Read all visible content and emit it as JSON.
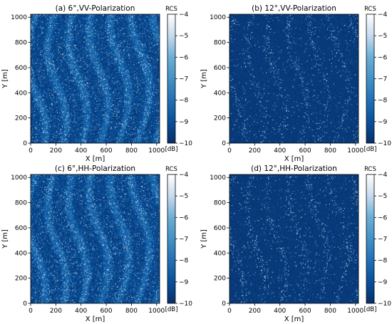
{
  "colorbar": {
    "label": "RCS",
    "unit": "[dB]",
    "min": -10,
    "max": -4,
    "ticks": [
      -4,
      -5,
      -6,
      -7,
      -8,
      -9,
      -10
    ],
    "colors": [
      "#08306b",
      "#08519c",
      "#2171b5",
      "#4292c6",
      "#6baed6",
      "#c6dbef",
      "#ffffff"
    ]
  },
  "chart_data": [
    {
      "type": "heatmap",
      "title": "(a) 6°,VV-Polarization",
      "xlabel": "X [m]",
      "ylabel": "Y [m]",
      "xlim": [
        0,
        1024
      ],
      "ylim": [
        0,
        1024
      ],
      "xticks": [
        0,
        200,
        400,
        600,
        800,
        1000
      ],
      "yticks": [
        0,
        200,
        400,
        600,
        800,
        1000
      ],
      "value_unit": "dB",
      "value_range": [
        -10,
        -4
      ],
      "mean_rcs_db": -9.0,
      "incidence_angle_deg": 6,
      "polarization": "VV"
    },
    {
      "type": "heatmap",
      "title": "(b) 12°,VV-Polarization",
      "xlabel": "X [m]",
      "ylabel": "Y [m]",
      "xlim": [
        0,
        1024
      ],
      "ylim": [
        0,
        1024
      ],
      "xticks": [
        0,
        200,
        400,
        600,
        800,
        1000
      ],
      "yticks": [
        0,
        200,
        400,
        600,
        800,
        1000
      ],
      "value_unit": "dB",
      "value_range": [
        -10,
        -4
      ],
      "mean_rcs_db": -9.7,
      "incidence_angle_deg": 12,
      "polarization": "VV"
    },
    {
      "type": "heatmap",
      "title": "(c) 6°,HH-Polarization",
      "xlabel": "X [m]",
      "ylabel": "Y [m]",
      "xlim": [
        0,
        1024
      ],
      "ylim": [
        0,
        1024
      ],
      "xticks": [
        0,
        200,
        400,
        600,
        800,
        1000
      ],
      "yticks": [
        0,
        200,
        400,
        600,
        800,
        1000
      ],
      "value_unit": "dB",
      "value_range": [
        -10,
        -4
      ],
      "mean_rcs_db": -9.0,
      "incidence_angle_deg": 6,
      "polarization": "HH"
    },
    {
      "type": "heatmap",
      "title": "(d) 12°,HH-Polarization",
      "xlabel": "X [m]",
      "ylabel": "Y [m]",
      "xlim": [
        0,
        1024
      ],
      "ylim": [
        0,
        1024
      ],
      "xticks": [
        0,
        200,
        400,
        600,
        800,
        1000
      ],
      "yticks": [
        0,
        200,
        400,
        600,
        800,
        1000
      ],
      "value_unit": "dB",
      "value_range": [
        -10,
        -4
      ],
      "mean_rcs_db": -9.7,
      "incidence_angle_deg": 12,
      "polarization": "HH"
    }
  ]
}
